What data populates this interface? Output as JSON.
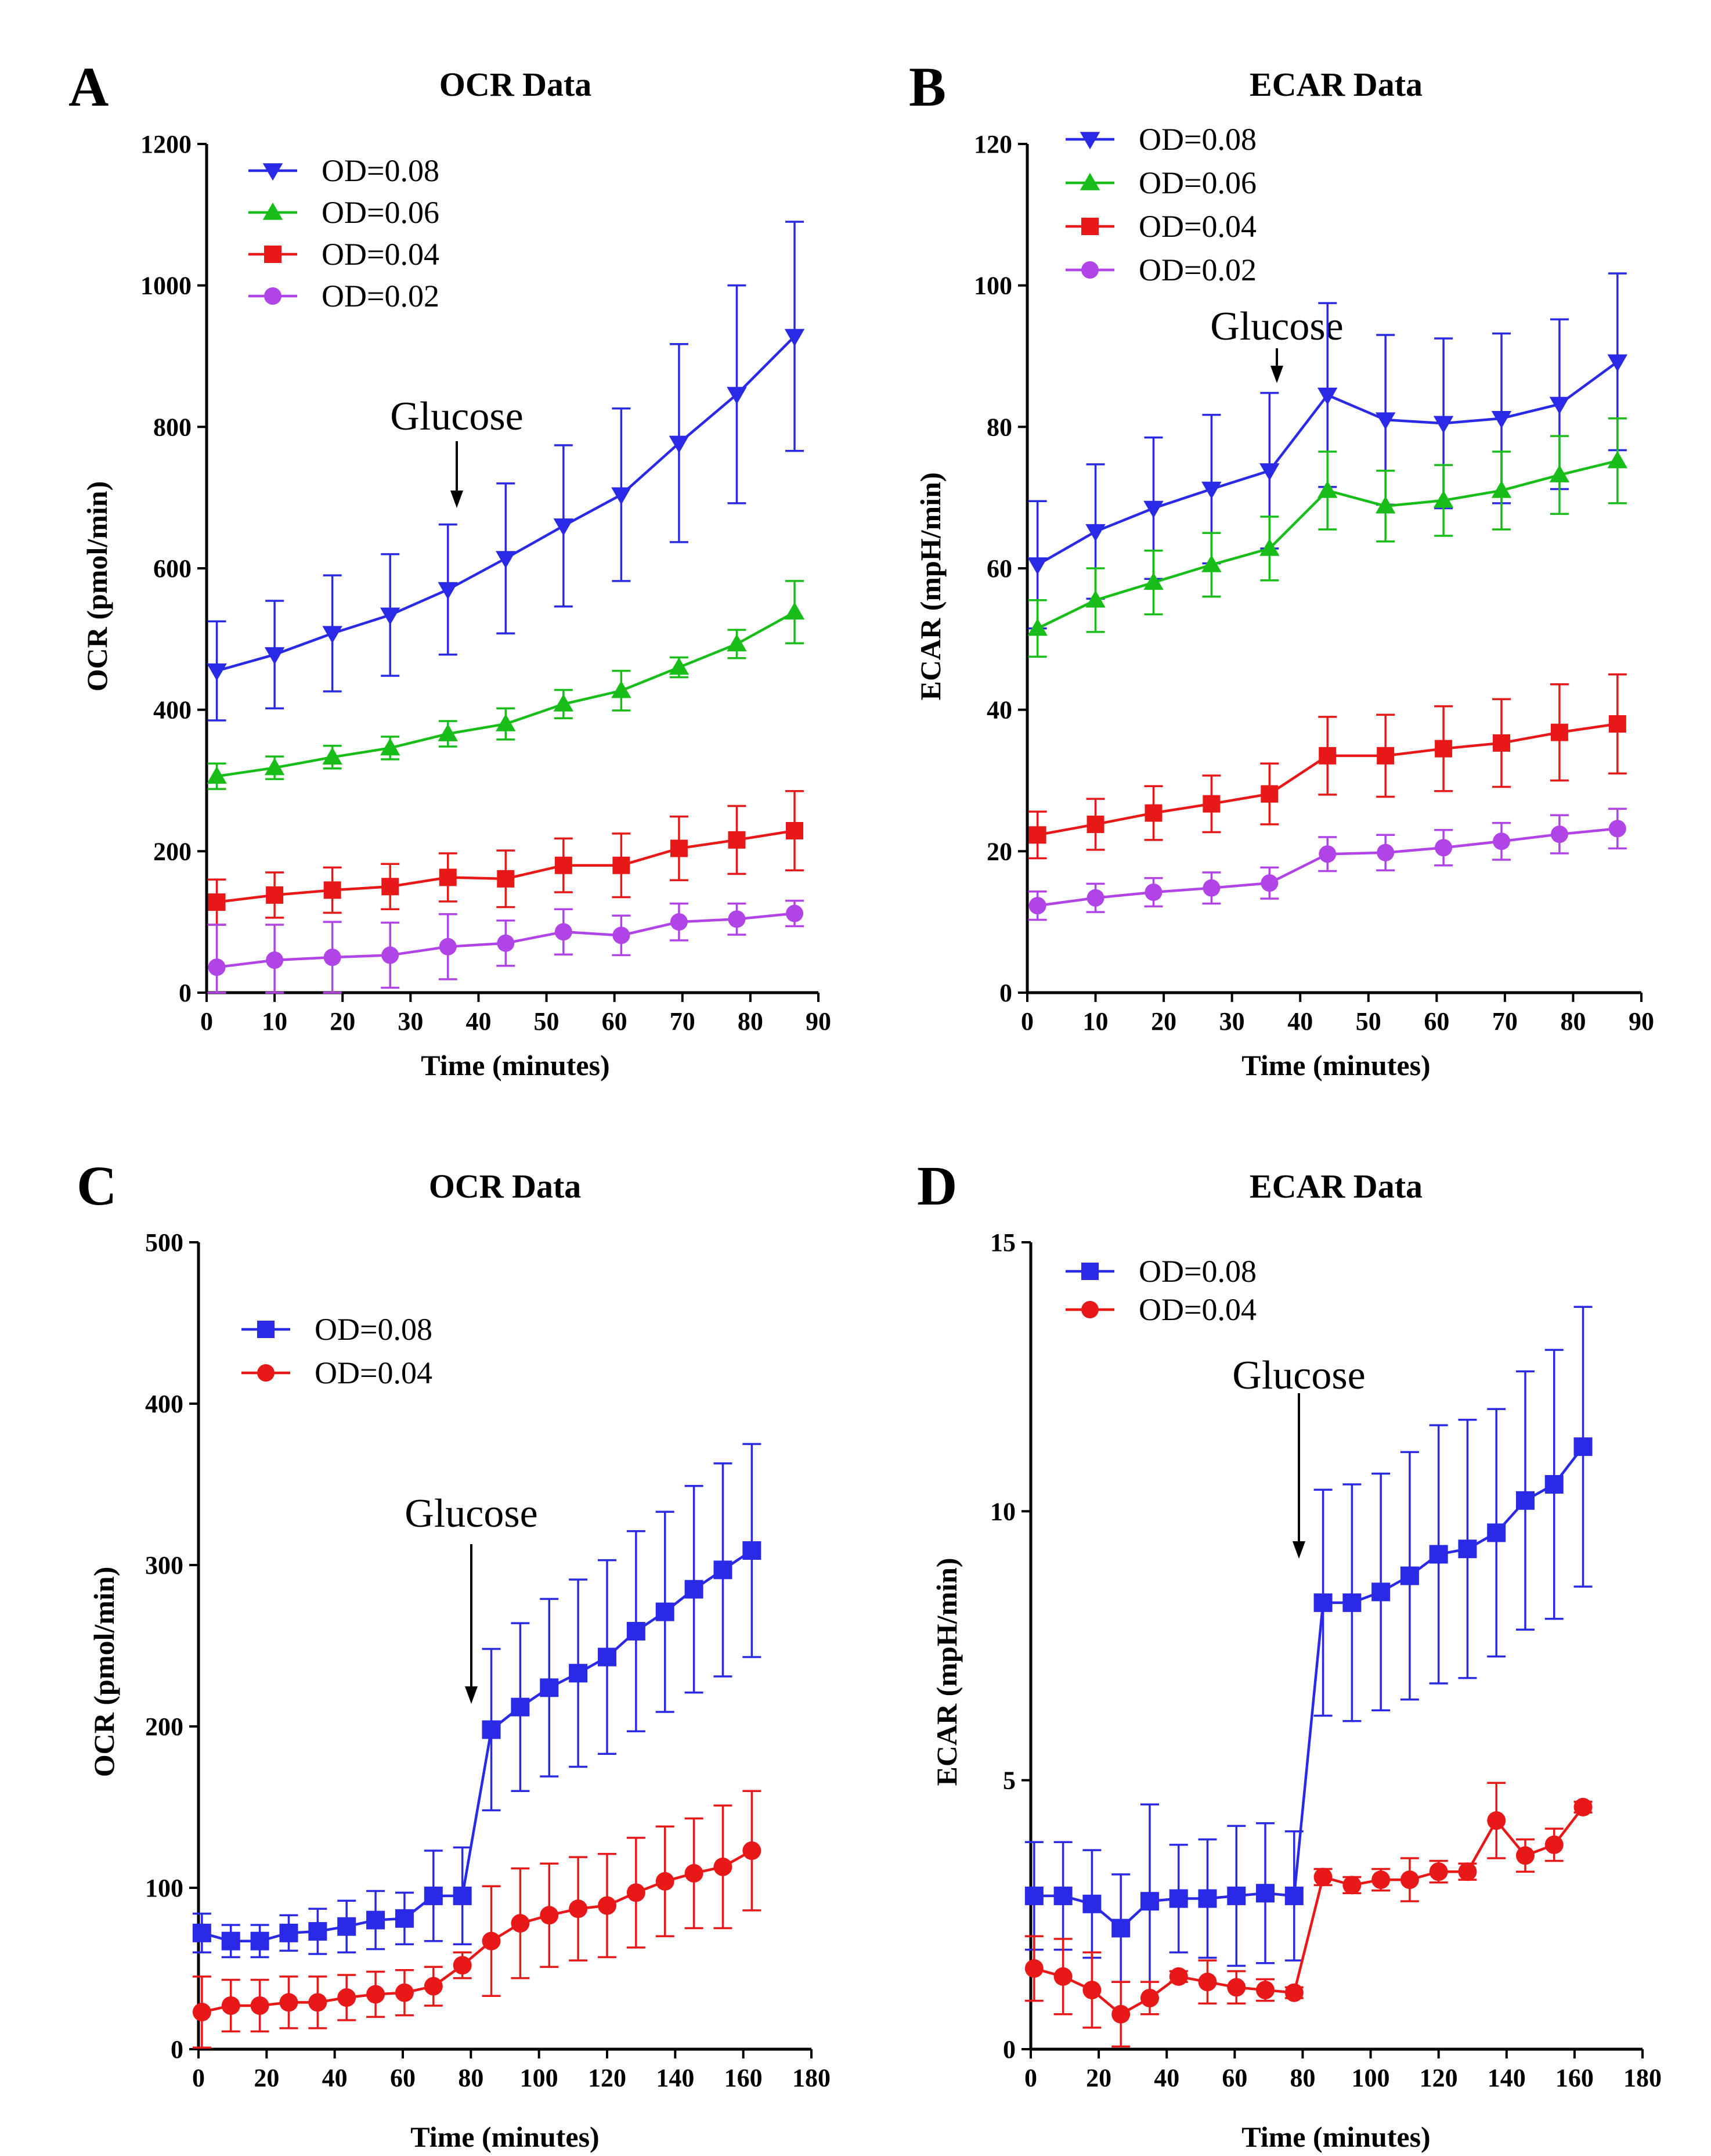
{
  "figure": {
    "colors": {
      "blue": "#2a2ae6",
      "green": "#19bd19",
      "red": "#e81818",
      "purple": "#b044e6",
      "axis": "#000000"
    }
  },
  "chart_data": [
    {
      "panel": "A",
      "type": "line",
      "title": "OCR Data",
      "xlabel": "Time (minutes)",
      "ylabel": "OCR (pmol/min)",
      "xlim": [
        0,
        90
      ],
      "ylim": [
        0,
        1200
      ],
      "xticks": [
        0,
        10,
        20,
        30,
        40,
        50,
        60,
        70,
        80,
        90
      ],
      "yticks": [
        0,
        200,
        400,
        600,
        800,
        1000,
        1200
      ],
      "legend_position": "top-left",
      "annotation": {
        "text": "Glucose",
        "x": 36
      },
      "x": [
        1.5,
        10,
        18.5,
        27,
        35.5,
        44,
        52.5,
        61,
        69.5,
        78,
        86.5
      ],
      "series": [
        {
          "name": "OD=0.08",
          "color": "blue",
          "marker": "triangle-down",
          "values": [
            455,
            478,
            508,
            534,
            570,
            614,
            660,
            704,
            777,
            846,
            928
          ],
          "errors": [
            70,
            76,
            82,
            86,
            92,
            106,
            114,
            122,
            140,
            154,
            162
          ]
        },
        {
          "name": "OD=0.06",
          "color": "green",
          "marker": "triangle-up",
          "values": [
            306,
            318,
            333,
            346,
            366,
            380,
            408,
            427,
            460,
            493,
            538
          ],
          "errors": [
            18,
            16,
            16,
            16,
            18,
            22,
            20,
            28,
            14,
            20,
            44
          ]
        },
        {
          "name": "OD=0.04",
          "color": "red",
          "marker": "square",
          "values": [
            128,
            138,
            145,
            150,
            163,
            161,
            180,
            180,
            204,
            216,
            229
          ],
          "errors": [
            32,
            32,
            32,
            32,
            34,
            40,
            38,
            45,
            45,
            48,
            56
          ]
        },
        {
          "name": "OD=0.02",
          "color": "purple",
          "marker": "circle",
          "values": [
            36,
            46,
            50,
            53,
            65,
            70,
            86,
            81,
            100,
            104,
            112
          ],
          "errors": [
            60,
            50,
            50,
            46,
            46,
            32,
            32,
            28,
            26,
            22,
            18
          ]
        }
      ]
    },
    {
      "panel": "B",
      "type": "line",
      "title": "ECAR Data",
      "xlabel": "Time (minutes)",
      "ylabel": "ECAR (mpH/min)",
      "xlim": [
        0,
        90
      ],
      "ylim": [
        0,
        120
      ],
      "xticks": [
        0,
        10,
        20,
        30,
        40,
        50,
        60,
        70,
        80,
        90
      ],
      "yticks": [
        0,
        20,
        40,
        60,
        80,
        100,
        120
      ],
      "legend_position": "top-left",
      "annotation": {
        "text": "Glucose",
        "x": 36
      },
      "x": [
        1.5,
        10,
        18.5,
        27,
        35.5,
        44,
        52.5,
        61,
        69.5,
        78,
        86.5
      ],
      "series": [
        {
          "name": "OD=0.08",
          "color": "blue",
          "marker": "triangle-down",
          "values": [
            60.5,
            65.2,
            68.5,
            71.2,
            73.8,
            84.5,
            81.0,
            80.5,
            81.2,
            83.2,
            89.2
          ],
          "errors": [
            9,
            9.5,
            10,
            10.5,
            11,
            13,
            12,
            12,
            12,
            12,
            12.5
          ]
        },
        {
          "name": "OD=0.06",
          "color": "green",
          "marker": "triangle-up",
          "values": [
            51.5,
            55.5,
            58.0,
            60.5,
            62.8,
            71.0,
            68.8,
            69.6,
            71.0,
            73.2,
            75.2
          ],
          "errors": [
            4,
            4.5,
            4.5,
            4.5,
            4.5,
            5.5,
            5,
            5,
            5.5,
            5.5,
            6
          ]
        },
        {
          "name": "OD=0.04",
          "color": "red",
          "marker": "square",
          "values": [
            22.3,
            23.8,
            25.4,
            26.7,
            28.1,
            33.5,
            33.5,
            34.5,
            35.3,
            36.8,
            38.0
          ],
          "errors": [
            3.3,
            3.6,
            3.8,
            4.0,
            4.3,
            5.5,
            5.8,
            6.0,
            6.2,
            6.8,
            7.0
          ]
        },
        {
          "name": "OD=0.02",
          "color": "purple",
          "marker": "circle",
          "values": [
            12.3,
            13.4,
            14.2,
            14.8,
            15.5,
            19.6,
            19.8,
            20.5,
            21.4,
            22.4,
            23.2
          ],
          "errors": [
            2.0,
            2.0,
            2.0,
            2.2,
            2.2,
            2.4,
            2.5,
            2.5,
            2.6,
            2.7,
            2.8
          ]
        }
      ]
    },
    {
      "panel": "C",
      "type": "line",
      "title": "OCR Data",
      "xlabel": "Time (minutes)",
      "ylabel": "OCR (pmol/min)",
      "xlim": [
        0,
        180
      ],
      "ylim": [
        0,
        500
      ],
      "xticks": [
        0,
        20,
        40,
        60,
        80,
        100,
        120,
        140,
        160,
        180
      ],
      "yticks": [
        0,
        100,
        200,
        300,
        400,
        500
      ],
      "legend_position": "top-left",
      "annotation": {
        "text": "Glucose",
        "x": 81
      },
      "x": [
        1,
        9.5,
        18,
        26.5,
        35,
        43.5,
        52,
        60.5,
        69,
        77.5,
        86,
        94.5,
        103,
        111.5,
        120,
        128.5,
        137,
        145.5,
        154,
        162.5
      ],
      "series": [
        {
          "name": "OD=0.08",
          "color": "blue",
          "marker": "square",
          "values": [
            72,
            67,
            67,
            72,
            73,
            76,
            80,
            81,
            95,
            95,
            198,
            212,
            224,
            233,
            243,
            259,
            271,
            285,
            297,
            309
          ],
          "errors": [
            12,
            10,
            10,
            11,
            14,
            16,
            18,
            16,
            28,
            30,
            50,
            52,
            55,
            58,
            60,
            62,
            62,
            64,
            66,
            66
          ]
        },
        {
          "name": "OD=0.04",
          "color": "red",
          "marker": "circle",
          "values": [
            23,
            27,
            27,
            29,
            29,
            32,
            34,
            35,
            39,
            52,
            67,
            78,
            83,
            87,
            89,
            97,
            104,
            109,
            113,
            123
          ],
          "errors": [
            22,
            16,
            16,
            16,
            16,
            14,
            14,
            14,
            12,
            8,
            34,
            34,
            32,
            32,
            32,
            34,
            34,
            34,
            38,
            37
          ]
        }
      ]
    },
    {
      "panel": "D",
      "type": "line",
      "title": "ECAR Data",
      "xlabel": "Time (minutes)",
      "ylabel": "ECAR (mpH/min)",
      "xlim": [
        0,
        180
      ],
      "ylim": [
        0,
        15
      ],
      "xticks": [
        0,
        20,
        40,
        60,
        80,
        100,
        120,
        140,
        160,
        180
      ],
      "yticks": [
        0,
        5,
        10,
        15
      ],
      "legend_position": "top-left",
      "annotation": {
        "text": "Glucose",
        "x": 79
      },
      "x": [
        1,
        9.5,
        18,
        26.5,
        35,
        43.5,
        52,
        60.5,
        69,
        77.5,
        86,
        94.5,
        103,
        111.5,
        120,
        128.5,
        137,
        145.5,
        154,
        162.5
      ],
      "series": [
        {
          "name": "OD=0.08",
          "color": "blue",
          "marker": "square",
          "values": [
            2.85,
            2.85,
            2.7,
            2.25,
            2.75,
            2.8,
            2.8,
            2.85,
            2.9,
            2.85,
            8.3,
            8.3,
            8.5,
            8.8,
            9.2,
            9.3,
            9.6,
            10.2,
            10.5,
            11.2
          ],
          "errors": [
            1.0,
            1.0,
            1.0,
            1.0,
            1.8,
            1.0,
            1.1,
            1.3,
            1.3,
            1.2,
            2.1,
            2.2,
            2.2,
            2.3,
            2.4,
            2.4,
            2.3,
            2.4,
            2.5,
            2.6
          ]
        },
        {
          "name": "OD=0.04",
          "color": "red",
          "marker": "circle",
          "values": [
            1.5,
            1.35,
            1.1,
            0.65,
            0.95,
            1.35,
            1.25,
            1.15,
            1.1,
            1.05,
            3.2,
            3.05,
            3.15,
            3.15,
            3.3,
            3.3,
            4.25,
            3.6,
            3.8,
            4.5
          ],
          "errors": [
            0.6,
            0.7,
            0.7,
            0.6,
            0.3,
            0.1,
            0.4,
            0.3,
            0.2,
            0.1,
            0.15,
            0.15,
            0.2,
            0.4,
            0.2,
            0.15,
            0.7,
            0.3,
            0.3,
            0.1
          ]
        }
      ]
    }
  ]
}
